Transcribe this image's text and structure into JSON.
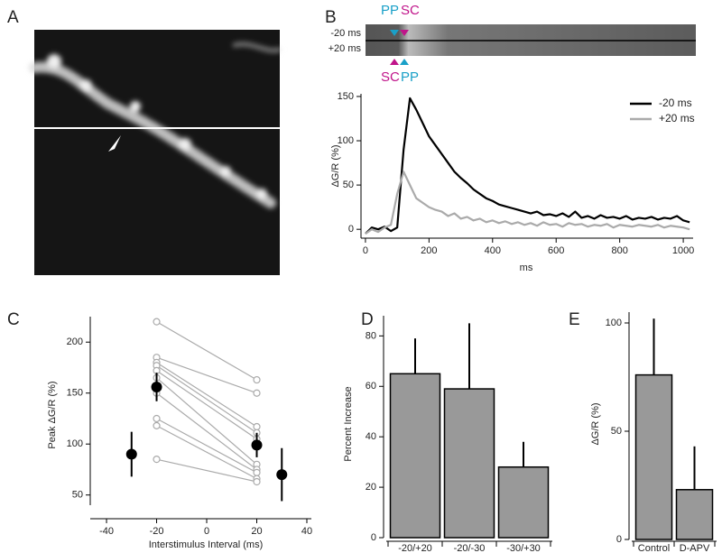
{
  "panel_labels": [
    "A",
    "B",
    "C",
    "D",
    "E"
  ],
  "linescan": {
    "top_labels": [
      "PP",
      "SC"
    ],
    "row_labels": [
      "-20 ms",
      "+20 ms"
    ],
    "bottom_labels": [
      "SC",
      "PP"
    ]
  },
  "chart_data": [
    {
      "type": "line",
      "x_label": "ms",
      "y_label": "ΔG/R (%)",
      "x": [
        0,
        20,
        40,
        60,
        80,
        100,
        120,
        140,
        160,
        180,
        200,
        220,
        240,
        260,
        280,
        300,
        320,
        340,
        360,
        380,
        400,
        420,
        440,
        460,
        480,
        500,
        520,
        540,
        560,
        580,
        600,
        620,
        640,
        660,
        680,
        700,
        720,
        740,
        760,
        780,
        800,
        820,
        840,
        860,
        880,
        900,
        920,
        940,
        960,
        980,
        1000,
        1020
      ],
      "series": [
        {
          "name": "-20 ms",
          "color": "#000000",
          "values": [
            -5,
            2,
            0,
            3,
            -2,
            2,
            90,
            148,
            135,
            120,
            105,
            95,
            85,
            75,
            65,
            58,
            52,
            45,
            40,
            35,
            32,
            28,
            26,
            24,
            22,
            20,
            18,
            20,
            16,
            17,
            15,
            18,
            14,
            20,
            13,
            15,
            12,
            16,
            13,
            14,
            12,
            15,
            11,
            13,
            12,
            14,
            11,
            13,
            12,
            15,
            10,
            8
          ]
        },
        {
          "name": "+20 ms",
          "color": "#aaaaaa",
          "values": [
            -5,
            0,
            -3,
            2,
            5,
            40,
            65,
            50,
            35,
            30,
            25,
            22,
            20,
            15,
            18,
            12,
            14,
            10,
            12,
            8,
            10,
            7,
            9,
            6,
            8,
            5,
            7,
            4,
            8,
            5,
            6,
            3,
            7,
            5,
            6,
            3,
            5,
            4,
            6,
            2,
            5,
            4,
            3,
            5,
            4,
            3,
            5,
            2,
            4,
            3,
            2,
            0
          ]
        }
      ],
      "xlim": [
        -14,
        1031
      ],
      "ylim": [
        -10,
        153
      ],
      "xticks": [
        0,
        200,
        400,
        600,
        800,
        1000
      ],
      "yticks": [
        0,
        50,
        100,
        150
      ],
      "legend": "top-right"
    },
    {
      "type": "scatter",
      "x_label": "Interstimulus Interval (ms)",
      "y_label": "Peak ΔG/R (%)",
      "pair_x": [
        -20,
        20
      ],
      "pairs": [
        [
          220,
          163
        ],
        [
          185,
          150
        ],
        [
          180,
          117
        ],
        [
          177,
          111
        ],
        [
          172,
          105
        ],
        [
          165,
          80
        ],
        [
          150,
          75
        ],
        [
          125,
          72
        ],
        [
          118,
          66
        ],
        [
          85,
          63
        ]
      ],
      "pair_color": "#aaaaaa",
      "x": [
        -30,
        -20,
        20,
        30
      ],
      "values": [
        90,
        156,
        99,
        70
      ],
      "errors": [
        22,
        14,
        12,
        26
      ],
      "color": "#000000",
      "xlim": [
        -46.5,
        41.8
      ],
      "ylim": [
        40,
        225
      ],
      "xticks": [
        -40,
        -20,
        0,
        20,
        40
      ],
      "yticks": [
        50,
        100,
        150,
        200
      ]
    },
    {
      "type": "bar",
      "y_label": "Percent Increase",
      "categories": [
        "-20/+20",
        "-20/-30",
        "-30/+30"
      ],
      "values": [
        65,
        59,
        28
      ],
      "errors": [
        14,
        26,
        10
      ],
      "color": "#999999",
      "ylim": [
        0,
        88
      ],
      "yticks": [
        0,
        20,
        40,
        60,
        80
      ]
    },
    {
      "type": "bar",
      "y_label": "ΔG/R (%)",
      "categories": [
        "Control",
        "D-APV"
      ],
      "values": [
        76,
        23
      ],
      "errors": [
        26,
        20
      ],
      "color": "#999999",
      "ylim": [
        0,
        105
      ],
      "yticks": [
        0,
        50,
        100
      ]
    }
  ]
}
